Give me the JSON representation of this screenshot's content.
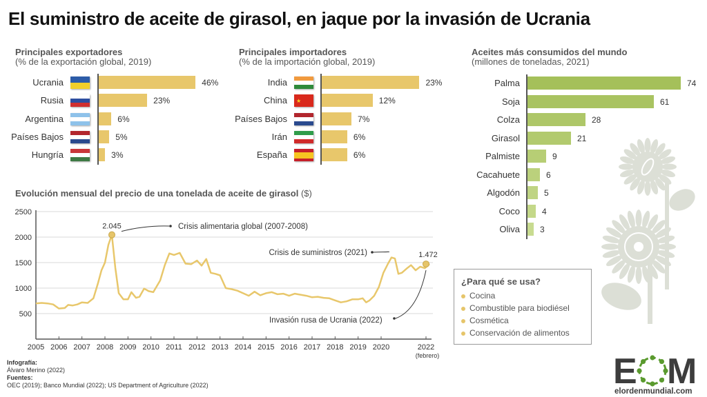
{
  "title": "El suministro de aceite de girasol, en jaque por la invasión de Ucrania",
  "colors": {
    "gold": "#e8c76b",
    "gold_dark": "#d4a93b",
    "green_dark": "#a5c05a",
    "green_light": "#c8db90",
    "sunflower": "#dcdfd6",
    "logo_gray": "#3d3d3d",
    "logo_green": "#5a9a2e"
  },
  "exporters": {
    "title": "Principales exportadores",
    "subtitle": "(% de la exportación global, 2019)",
    "items": [
      {
        "label": "Ucrania",
        "value": 46,
        "value_label": "46%",
        "flag": "ukraine-flag"
      },
      {
        "label": "Rusia",
        "value": 23,
        "value_label": "23%",
        "flag": "russia-flag"
      },
      {
        "label": "Argentina",
        "value": 6,
        "value_label": "6%",
        "flag": "argentina-flag"
      },
      {
        "label": "Países Bajos",
        "value": 5,
        "value_label": "5%",
        "flag": "netherlands-flag"
      },
      {
        "label": "Hungría",
        "value": 3,
        "value_label": "3%",
        "flag": "hungary-flag"
      }
    ]
  },
  "importers": {
    "title": "Principales importadores",
    "subtitle": "(% de la importación global, 2019)",
    "items": [
      {
        "label": "India",
        "value": 23,
        "value_label": "23%",
        "flag": "india-flag"
      },
      {
        "label": "China",
        "value": 12,
        "value_label": "12%",
        "flag": "china-flag"
      },
      {
        "label": "Países Bajos",
        "value": 7,
        "value_label": "7%",
        "flag": "netherlands-flag"
      },
      {
        "label": "Irán",
        "value": 6,
        "value_label": "6%",
        "flag": "iran-flag"
      },
      {
        "label": "España",
        "value": 6,
        "value_label": "6%",
        "flag": "spain-flag"
      }
    ]
  },
  "oils": {
    "title": "Aceites más consumidos del mundo",
    "subtitle": "(millones de toneladas, 2021)",
    "items": [
      {
        "label": "Palma",
        "value": 74,
        "value_label": "74"
      },
      {
        "label": "Soja",
        "value": 61,
        "value_label": "61"
      },
      {
        "label": "Colza",
        "value": 28,
        "value_label": "28"
      },
      {
        "label": "Girasol",
        "value": 21,
        "value_label": "21"
      },
      {
        "label": "Palmiste",
        "value": 9,
        "value_label": "9"
      },
      {
        "label": "Cacahuete",
        "value": 6,
        "value_label": "6"
      },
      {
        "label": "Algodón",
        "value": 5,
        "value_label": "5"
      },
      {
        "label": "Coco",
        "value": 4,
        "value_label": "4"
      },
      {
        "label": "Oliva",
        "value": 3,
        "value_label": "3"
      }
    ]
  },
  "uses": {
    "title": "¿Para qué se usa?",
    "items": [
      "Cocina",
      "Combustible para biodiésel",
      "Cosmética",
      "Conservación de alimentos"
    ]
  },
  "credits": {
    "infographic_label": "Infografía:",
    "infographic_value": "Álvaro Merino (2022)",
    "sources_label": "Fuentes:",
    "sources_value": "OEC (2019); Banco Mundial (2022); US Department of Agriculture (2022)"
  },
  "logo": {
    "letters_left": "E",
    "letters_right": "M",
    "domain": "elordenmundial.com"
  },
  "chart_data": [
    {
      "type": "bar",
      "title": "Principales exportadores",
      "subtitle": "(% de la exportación global, 2019)",
      "categories": [
        "Ucrania",
        "Rusia",
        "Argentina",
        "Países Bajos",
        "Hungría"
      ],
      "values": [
        46,
        23,
        6,
        5,
        3
      ],
      "orientation": "horizontal",
      "unit": "%"
    },
    {
      "type": "bar",
      "title": "Principales importadores",
      "subtitle": "(% de la importación global, 2019)",
      "categories": [
        "India",
        "China",
        "Países Bajos",
        "Irán",
        "España"
      ],
      "values": [
        23,
        12,
        7,
        6,
        6
      ],
      "orientation": "horizontal",
      "unit": "%"
    },
    {
      "type": "bar",
      "title": "Aceites más consumidos del mundo",
      "subtitle": "(millones de toneladas, 2021)",
      "categories": [
        "Palma",
        "Soja",
        "Colza",
        "Girasol",
        "Palmiste",
        "Cacahuete",
        "Algodón",
        "Coco",
        "Oliva"
      ],
      "values": [
        74,
        61,
        28,
        21,
        9,
        6,
        5,
        4,
        3
      ],
      "orientation": "horizontal"
    },
    {
      "type": "line",
      "title": "Evolución mensual del precio de una tonelada de aceite de girasol",
      "title_unit": "($)",
      "xlabel": "",
      "ylabel": "",
      "ylim": [
        0,
        2500
      ],
      "xlim": [
        2005,
        2022.1
      ],
      "yticks": [
        500,
        1000,
        1500,
        2000,
        2500
      ],
      "xticks": [
        "2005",
        "2006",
        "2007",
        "2008",
        "2009",
        "2010",
        "2011",
        "2012",
        "2013",
        "2014",
        "2015",
        "2016",
        "2017",
        "2018",
        "2019",
        "2020",
        "2022"
      ],
      "xtick_note": "(febrero)",
      "grid": true,
      "series": [
        {
          "name": "Precio aceite de girasol",
          "x": [
            2005.0,
            2005.25,
            2005.5,
            2005.75,
            2006.0,
            2006.25,
            2006.4,
            2006.6,
            2006.8,
            2007.0,
            2007.25,
            2007.5,
            2007.7,
            2007.85,
            2008.0,
            2008.15,
            2008.3,
            2008.45,
            2008.6,
            2008.8,
            2009.0,
            2009.15,
            2009.35,
            2009.5,
            2009.7,
            2009.9,
            2010.1,
            2010.4,
            2010.6,
            2010.8,
            2011.0,
            2011.25,
            2011.5,
            2011.75,
            2012.0,
            2012.2,
            2012.4,
            2012.6,
            2012.8,
            2013.0,
            2013.25,
            2013.5,
            2013.75,
            2014.0,
            2014.25,
            2014.5,
            2014.75,
            2015.0,
            2015.25,
            2015.5,
            2015.75,
            2016.0,
            2016.25,
            2016.5,
            2016.75,
            2017.0,
            2017.25,
            2017.5,
            2017.75,
            2018.0,
            2018.25,
            2018.5,
            2018.75,
            2019.0,
            2019.2,
            2019.35,
            2019.5,
            2019.7,
            2019.9,
            2020.1,
            2020.3,
            2020.45,
            2020.6,
            2020.75,
            2020.9,
            2021.1,
            2021.3,
            2021.5,
            2021.7,
            2021.9,
            2022.1
          ],
          "y": [
            700,
            710,
            700,
            680,
            600,
            610,
            670,
            660,
            680,
            720,
            710,
            800,
            1100,
            1350,
            1500,
            1850,
            2045,
            1400,
            900,
            780,
            780,
            920,
            810,
            830,
            990,
            940,
            920,
            1150,
            1450,
            1680,
            1650,
            1690,
            1480,
            1470,
            1540,
            1440,
            1570,
            1300,
            1280,
            1250,
            1000,
            980,
            950,
            900,
            850,
            930,
            860,
            900,
            920,
            880,
            890,
            850,
            890,
            870,
            850,
            820,
            830,
            810,
            800,
            760,
            720,
            740,
            780,
            780,
            800,
            720,
            760,
            850,
            1020,
            1300,
            1480,
            1600,
            1580,
            1280,
            1300,
            1380,
            1450,
            1350,
            1420,
            1390,
            1472
          ]
        }
      ],
      "annotations": [
        {
          "label": "2.045",
          "x": 2008.3,
          "y": 2045,
          "text": "Crisis alimentaria global (2007-2008)"
        },
        {
          "label": "",
          "x": 2020.3,
          "y": 1600,
          "text": "Crisis de suministros (2021)"
        },
        {
          "label": "1.472",
          "x": 2022.1,
          "y": 1472,
          "text": "Invasión rusa de Ucrania (2022)"
        }
      ]
    }
  ]
}
